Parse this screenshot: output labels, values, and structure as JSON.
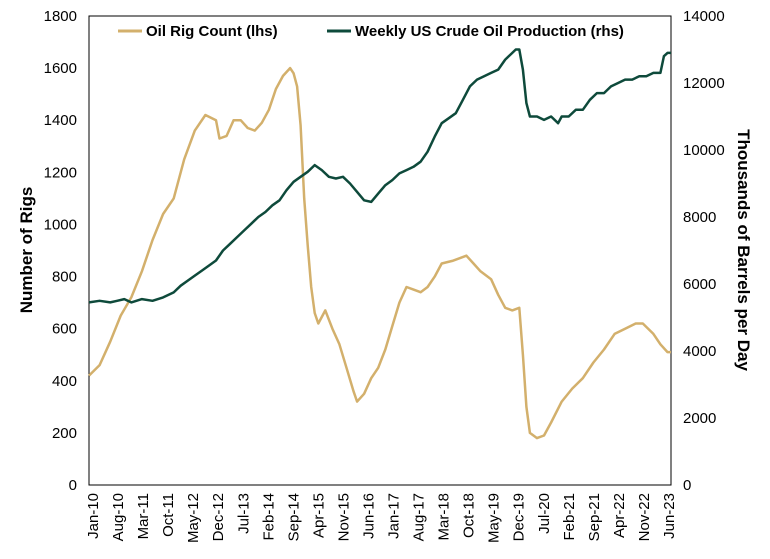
{
  "chart_data": {
    "type": "line",
    "title": "",
    "legend_placement": "top",
    "grid": false,
    "x_ticks": [
      "Jan-10",
      "Aug-10",
      "Mar-11",
      "Oct-11",
      "May-12",
      "Dec-12",
      "Jul-13",
      "Feb-14",
      "Sep-14",
      "Apr-15",
      "Nov-15",
      "Jun-16",
      "Jan-17",
      "Aug-17",
      "Mar-18",
      "Oct-18",
      "May-19",
      "Dec-19",
      "Jul-20",
      "Feb-21",
      "Sep-21",
      "Apr-22",
      "Nov-22",
      "Jun-23"
    ],
    "x_range": [
      "2010-01",
      "2023-10"
    ],
    "y_left": {
      "label": "Number of Rigs",
      "range": [
        0,
        1800
      ],
      "ticks": [
        0,
        200,
        400,
        600,
        800,
        1000,
        1200,
        1400,
        1600,
        1800
      ]
    },
    "y_right": {
      "label": "Thousands of Barrels per Day",
      "range": [
        0,
        14000
      ],
      "ticks": [
        0,
        2000,
        4000,
        6000,
        8000,
        10000,
        12000,
        14000
      ]
    },
    "series": [
      {
        "name": "Oil Rig Count (lhs)",
        "axis": "left",
        "color": "#d3b06c",
        "points": [
          [
            "2010-01",
            420
          ],
          [
            "2010-04",
            460
          ],
          [
            "2010-07",
            550
          ],
          [
            "2010-10",
            650
          ],
          [
            "2011-01",
            720
          ],
          [
            "2011-04",
            820
          ],
          [
            "2011-07",
            940
          ],
          [
            "2011-10",
            1040
          ],
          [
            "2012-01",
            1100
          ],
          [
            "2012-04",
            1250
          ],
          [
            "2012-07",
            1360
          ],
          [
            "2012-10",
            1420
          ],
          [
            "2013-01",
            1400
          ],
          [
            "2013-02",
            1330
          ],
          [
            "2013-04",
            1340
          ],
          [
            "2013-06",
            1400
          ],
          [
            "2013-08",
            1400
          ],
          [
            "2013-10",
            1370
          ],
          [
            "2013-12",
            1360
          ],
          [
            "2014-02",
            1390
          ],
          [
            "2014-04",
            1440
          ],
          [
            "2014-06",
            1520
          ],
          [
            "2014-08",
            1570
          ],
          [
            "2014-10",
            1600
          ],
          [
            "2014-11",
            1580
          ],
          [
            "2014-12",
            1530
          ],
          [
            "2015-01",
            1380
          ],
          [
            "2015-02",
            1100
          ],
          [
            "2015-03",
            920
          ],
          [
            "2015-04",
            760
          ],
          [
            "2015-05",
            660
          ],
          [
            "2015-06",
            620
          ],
          [
            "2015-08",
            670
          ],
          [
            "2015-10",
            600
          ],
          [
            "2015-12",
            540
          ],
          [
            "2016-02",
            450
          ],
          [
            "2016-04",
            360
          ],
          [
            "2016-05",
            320
          ],
          [
            "2016-07",
            350
          ],
          [
            "2016-09",
            410
          ],
          [
            "2016-11",
            450
          ],
          [
            "2017-01",
            520
          ],
          [
            "2017-03",
            610
          ],
          [
            "2017-05",
            700
          ],
          [
            "2017-07",
            760
          ],
          [
            "2017-09",
            750
          ],
          [
            "2017-11",
            740
          ],
          [
            "2018-01",
            760
          ],
          [
            "2018-03",
            800
          ],
          [
            "2018-05",
            850
          ],
          [
            "2018-08",
            860
          ],
          [
            "2018-10",
            870
          ],
          [
            "2018-12",
            880
          ],
          [
            "2019-02",
            850
          ],
          [
            "2019-04",
            820
          ],
          [
            "2019-07",
            790
          ],
          [
            "2019-09",
            730
          ],
          [
            "2019-11",
            680
          ],
          [
            "2020-01",
            670
          ],
          [
            "2020-03",
            680
          ],
          [
            "2020-04",
            500
          ],
          [
            "2020-05",
            300
          ],
          [
            "2020-06",
            200
          ],
          [
            "2020-08",
            180
          ],
          [
            "2020-10",
            190
          ],
          [
            "2020-12",
            240
          ],
          [
            "2021-03",
            320
          ],
          [
            "2021-06",
            370
          ],
          [
            "2021-09",
            410
          ],
          [
            "2021-12",
            470
          ],
          [
            "2022-03",
            520
          ],
          [
            "2022-06",
            580
          ],
          [
            "2022-09",
            600
          ],
          [
            "2022-12",
            620
          ],
          [
            "2023-02",
            620
          ],
          [
            "2023-05",
            580
          ],
          [
            "2023-07",
            540
          ],
          [
            "2023-09",
            510
          ],
          [
            "2023-10",
            510
          ]
        ]
      },
      {
        "name": "Weekly US Crude Oil Production (rhs)",
        "axis": "right",
        "color": "#0e4a3b",
        "points": [
          [
            "2010-01",
            5450
          ],
          [
            "2010-04",
            5500
          ],
          [
            "2010-07",
            5450
          ],
          [
            "2010-09",
            5500
          ],
          [
            "2010-11",
            5550
          ],
          [
            "2011-01",
            5450
          ],
          [
            "2011-04",
            5550
          ],
          [
            "2011-07",
            5500
          ],
          [
            "2011-10",
            5600
          ],
          [
            "2012-01",
            5750
          ],
          [
            "2012-03",
            5950
          ],
          [
            "2012-05",
            6100
          ],
          [
            "2012-07",
            6250
          ],
          [
            "2012-09",
            6400
          ],
          [
            "2012-11",
            6550
          ],
          [
            "2013-01",
            6700
          ],
          [
            "2013-03",
            7000
          ],
          [
            "2013-05",
            7200
          ],
          [
            "2013-07",
            7400
          ],
          [
            "2013-09",
            7600
          ],
          [
            "2013-11",
            7800
          ],
          [
            "2014-01",
            8000
          ],
          [
            "2014-03",
            8150
          ],
          [
            "2014-05",
            8350
          ],
          [
            "2014-07",
            8500
          ],
          [
            "2014-09",
            8800
          ],
          [
            "2014-11",
            9050
          ],
          [
            "2015-01",
            9200
          ],
          [
            "2015-03",
            9350
          ],
          [
            "2015-05",
            9550
          ],
          [
            "2015-07",
            9400
          ],
          [
            "2015-09",
            9200
          ],
          [
            "2015-11",
            9150
          ],
          [
            "2016-01",
            9200
          ],
          [
            "2016-03",
            9000
          ],
          [
            "2016-05",
            8750
          ],
          [
            "2016-07",
            8500
          ],
          [
            "2016-09",
            8450
          ],
          [
            "2016-11",
            8700
          ],
          [
            "2017-01",
            8950
          ],
          [
            "2017-03",
            9100
          ],
          [
            "2017-05",
            9300
          ],
          [
            "2017-07",
            9400
          ],
          [
            "2017-09",
            9500
          ],
          [
            "2017-11",
            9650
          ],
          [
            "2018-01",
            9950
          ],
          [
            "2018-03",
            10400
          ],
          [
            "2018-05",
            10800
          ],
          [
            "2018-07",
            10950
          ],
          [
            "2018-09",
            11100
          ],
          [
            "2018-11",
            11500
          ],
          [
            "2019-01",
            11900
          ],
          [
            "2019-03",
            12100
          ],
          [
            "2019-05",
            12200
          ],
          [
            "2019-07",
            12300
          ],
          [
            "2019-09",
            12400
          ],
          [
            "2019-11",
            12700
          ],
          [
            "2020-01",
            12900
          ],
          [
            "2020-02",
            13000
          ],
          [
            "2020-03",
            13000
          ],
          [
            "2020-04",
            12400
          ],
          [
            "2020-05",
            11400
          ],
          [
            "2020-06",
            11000
          ],
          [
            "2020-08",
            11000
          ],
          [
            "2020-10",
            10900
          ],
          [
            "2020-12",
            11000
          ],
          [
            "2021-02",
            10800
          ],
          [
            "2021-03",
            11000
          ],
          [
            "2021-05",
            11000
          ],
          [
            "2021-07",
            11200
          ],
          [
            "2021-09",
            11200
          ],
          [
            "2021-11",
            11500
          ],
          [
            "2022-01",
            11700
          ],
          [
            "2022-03",
            11700
          ],
          [
            "2022-05",
            11900
          ],
          [
            "2022-07",
            12000
          ],
          [
            "2022-09",
            12100
          ],
          [
            "2022-11",
            12100
          ],
          [
            "2023-01",
            12200
          ],
          [
            "2023-03",
            12200
          ],
          [
            "2023-05",
            12300
          ],
          [
            "2023-07",
            12300
          ],
          [
            "2023-08",
            12800
          ],
          [
            "2023-09",
            12900
          ],
          [
            "2023-10",
            12900
          ]
        ]
      }
    ]
  }
}
